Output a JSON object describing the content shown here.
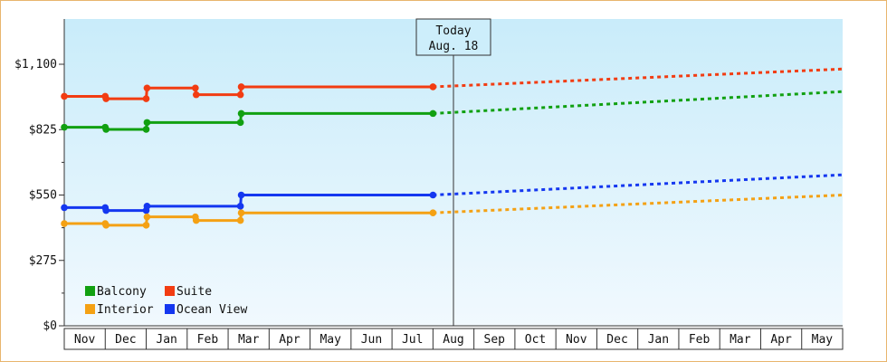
{
  "chart_data": {
    "type": "line",
    "y_axis": {
      "ticks": [
        0,
        275,
        550,
        825,
        1100
      ],
      "tick_labels": [
        "$0",
        "$275",
        "$550",
        "$825",
        "$1,100"
      ],
      "ylim": [
        0,
        1100
      ]
    },
    "x_axis": {
      "categories": [
        "Nov",
        "Dec",
        "Jan",
        "Feb",
        "Mar",
        "Apr",
        "May",
        "Jun",
        "Jul",
        "Aug",
        "Sep",
        "Oct",
        "Nov",
        "Dec",
        "Jan",
        "Feb",
        "Mar",
        "Apr",
        "May"
      ]
    },
    "today": {
      "line1": "Today",
      "line2": "Aug. 18"
    },
    "legend": [
      {
        "label": "Balcony",
        "color": "#11a011"
      },
      {
        "label": "Suite",
        "color": "#f23c12"
      },
      {
        "label": "Interior",
        "color": "#f4a114"
      },
      {
        "label": "Ocean View",
        "color": "#1437f0"
      }
    ],
    "series": [
      {
        "name": "Suite",
        "color": "#f23c12",
        "actual": [
          [
            0.0,
            965
          ],
          [
            1.0,
            965
          ],
          [
            1.02,
            955
          ],
          [
            2.0,
            955
          ],
          [
            2.02,
            1000
          ],
          [
            3.2,
            1000
          ],
          [
            3.22,
            972
          ],
          [
            4.3,
            972
          ],
          [
            4.32,
            1005
          ],
          [
            9.0,
            1005
          ]
        ],
        "forecast": [
          [
            9.0,
            1005
          ],
          [
            19.0,
            1080
          ]
        ]
      },
      {
        "name": "Balcony",
        "color": "#11a011",
        "actual": [
          [
            0.0,
            835
          ],
          [
            1.0,
            835
          ],
          [
            1.02,
            826
          ],
          [
            2.0,
            826
          ],
          [
            2.02,
            855
          ],
          [
            4.3,
            855
          ],
          [
            4.32,
            893
          ],
          [
            9.0,
            893
          ]
        ],
        "forecast": [
          [
            9.0,
            893
          ],
          [
            19.0,
            985
          ]
        ]
      },
      {
        "name": "Ocean View",
        "color": "#1437f0",
        "actual": [
          [
            0.0,
            497
          ],
          [
            1.0,
            497
          ],
          [
            1.02,
            485
          ],
          [
            2.0,
            485
          ],
          [
            2.02,
            503
          ],
          [
            4.3,
            503
          ],
          [
            4.32,
            550
          ],
          [
            9.0,
            550
          ]
        ],
        "forecast": [
          [
            9.0,
            550
          ],
          [
            19.0,
            635
          ]
        ]
      },
      {
        "name": "Interior",
        "color": "#f4a114",
        "actual": [
          [
            0.0,
            430
          ],
          [
            1.0,
            430
          ],
          [
            1.02,
            423
          ],
          [
            2.0,
            423
          ],
          [
            2.02,
            458
          ],
          [
            3.2,
            458
          ],
          [
            3.22,
            443
          ],
          [
            4.3,
            443
          ],
          [
            4.32,
            475
          ],
          [
            9.0,
            475
          ]
        ],
        "forecast": [
          [
            9.0,
            475
          ],
          [
            19.0,
            550
          ]
        ]
      }
    ]
  }
}
